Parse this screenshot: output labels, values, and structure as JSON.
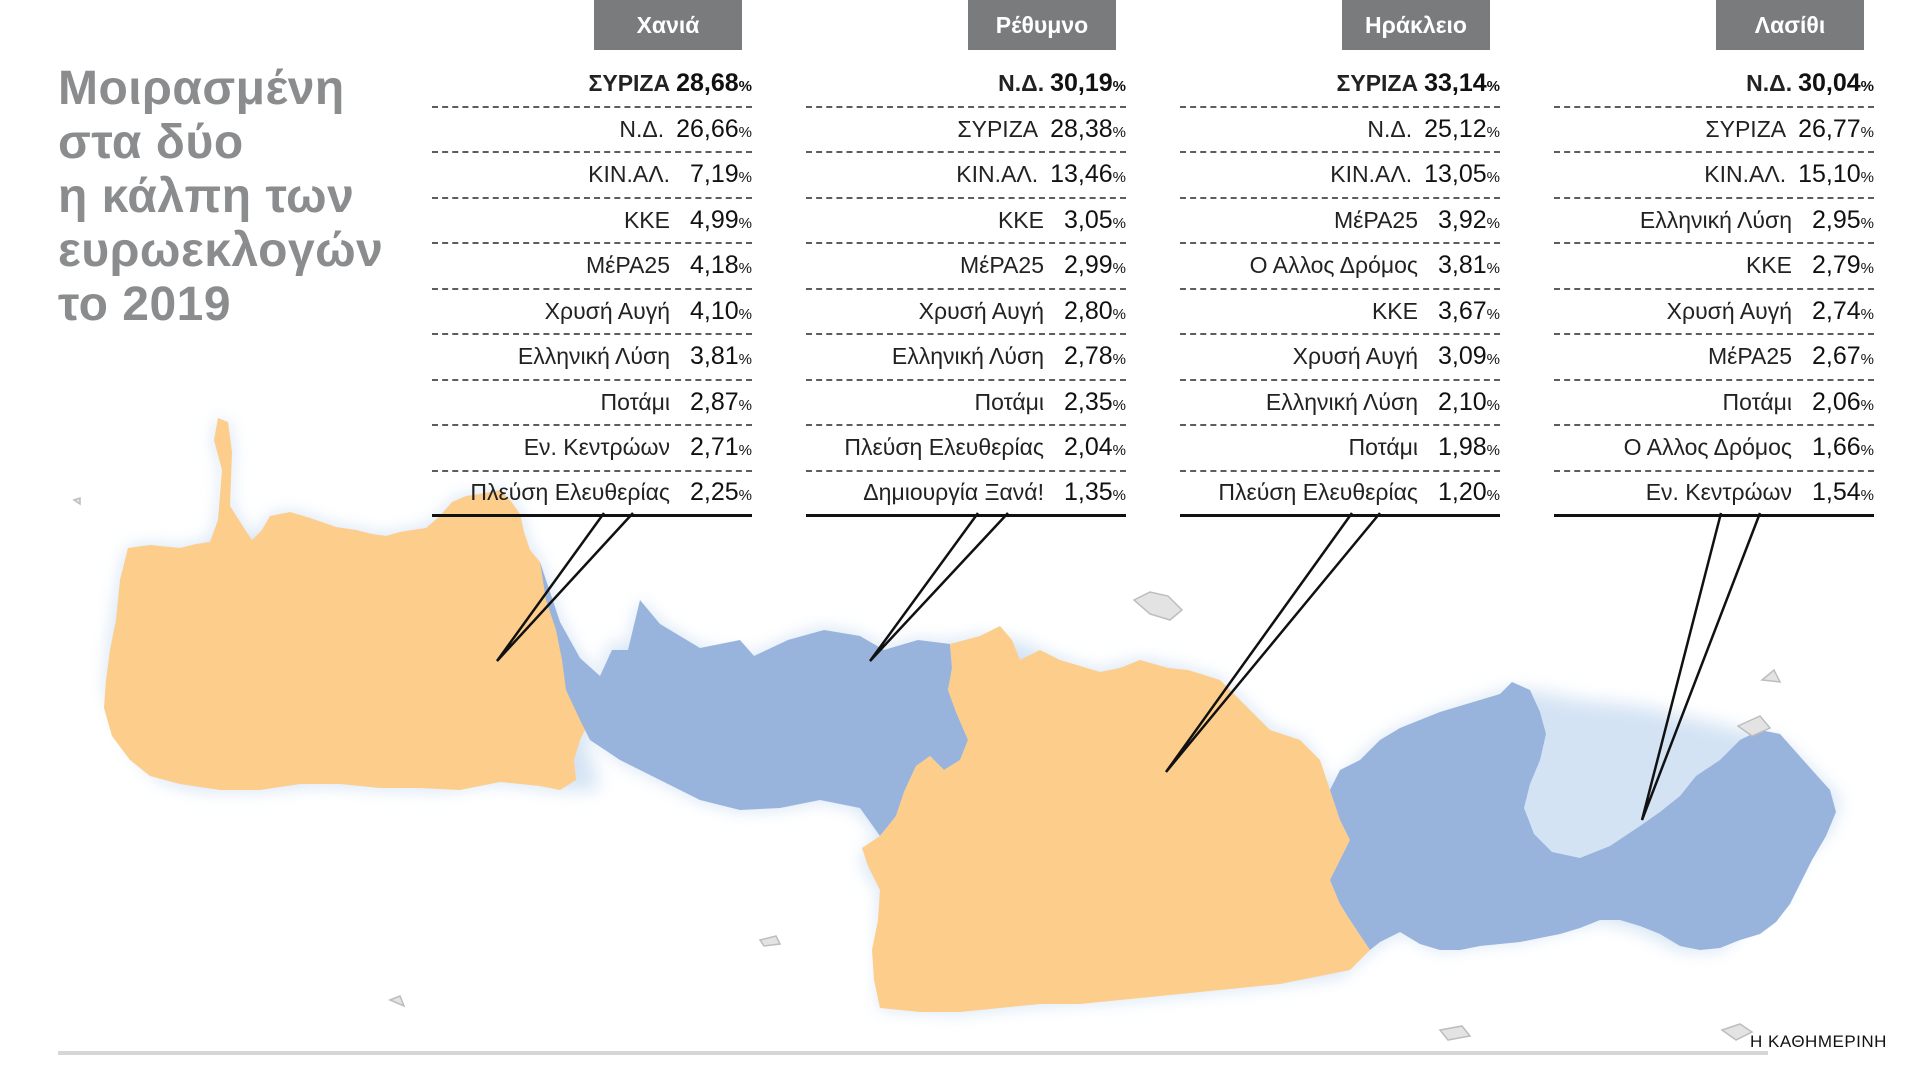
{
  "title_lines": [
    "Μοιρασμένη",
    "στα δύο",
    "η κάλπη των",
    "ευρωεκλογών",
    "το 2019"
  ],
  "brand": "Η ΚΑΘΗΜΕΡΙΝΗ",
  "percent_sign": "%",
  "colors": {
    "nd_blue": "#98b4dc",
    "syriza_orange": "#fdcd8c",
    "header_grey": "#7a7b7d",
    "title_grey": "#8a8c8e"
  },
  "regions": [
    {
      "name": "Χανιά",
      "winner": "ΣΥΡΙΖΑ",
      "results": [
        {
          "party": "ΣΥΡΙΖΑ",
          "value": "28,68"
        },
        {
          "party": "Ν.Δ.",
          "value": "26,66"
        },
        {
          "party": "ΚΙΝ.ΑΛ.",
          "value": "7,19"
        },
        {
          "party": "ΚΚΕ",
          "value": "4,99"
        },
        {
          "party": "ΜέΡΑ25",
          "value": "4,18"
        },
        {
          "party": "Χρυσή Αυγή",
          "value": "4,10"
        },
        {
          "party": "Ελληνική Λύση",
          "value": "3,81"
        },
        {
          "party": "Ποτάμι",
          "value": "2,87"
        },
        {
          "party": "Εν. Κεντρώων",
          "value": "2,71"
        },
        {
          "party": "Πλεύση Ελευθερίας",
          "value": "2,25"
        }
      ]
    },
    {
      "name": "Ρέθυμνο",
      "winner": "Ν.Δ.",
      "results": [
        {
          "party": "Ν.Δ.",
          "value": "30,19"
        },
        {
          "party": "ΣΥΡΙΖΑ",
          "value": "28,38"
        },
        {
          "party": "ΚΙΝ.ΑΛ.",
          "value": "13,46"
        },
        {
          "party": "ΚΚΕ",
          "value": "3,05"
        },
        {
          "party": "ΜέΡΑ25",
          "value": "2,99"
        },
        {
          "party": "Χρυσή Αυγή",
          "value": "2,80"
        },
        {
          "party": "Ελληνική Λύση",
          "value": "2,78"
        },
        {
          "party": "Ποτάμι",
          "value": "2,35"
        },
        {
          "party": "Πλεύση Ελευθερίας",
          "value": "2,04"
        },
        {
          "party": "Δημιουργία Ξανά!",
          "value": "1,35"
        }
      ]
    },
    {
      "name": "Ηράκλειο",
      "winner": "ΣΥΡΙΖΑ",
      "results": [
        {
          "party": "ΣΥΡΙΖΑ",
          "value": "33,14"
        },
        {
          "party": "Ν.Δ.",
          "value": "25,12"
        },
        {
          "party": "ΚΙΝ.ΑΛ.",
          "value": "13,05"
        },
        {
          "party": "ΜέΡΑ25",
          "value": "3,92"
        },
        {
          "party": "Ο Αλλος Δρόμος",
          "value": "3,81"
        },
        {
          "party": "ΚΚΕ",
          "value": "3,67"
        },
        {
          "party": "Χρυσή Αυγή",
          "value": "3,09"
        },
        {
          "party": "Ελληνική Λύση",
          "value": "2,10"
        },
        {
          "party": "Ποτάμι",
          "value": "1,98"
        },
        {
          "party": "Πλεύση Ελευθερίας",
          "value": "1,20"
        }
      ]
    },
    {
      "name": "Λασίθι",
      "winner": "Ν.Δ.",
      "results": [
        {
          "party": "Ν.Δ.",
          "value": "30,04"
        },
        {
          "party": "ΣΥΡΙΖΑ",
          "value": "26,77"
        },
        {
          "party": "ΚΙΝ.ΑΛ.",
          "value": "15,10"
        },
        {
          "party": "Ελληνική Λύση",
          "value": "2,95"
        },
        {
          "party": "ΚΚΕ",
          "value": "2,79"
        },
        {
          "party": "Χρυσή Αυγή",
          "value": "2,74"
        },
        {
          "party": "ΜέΡΑ25",
          "value": "2,67"
        },
        {
          "party": "Ποτάμι",
          "value": "2,06"
        },
        {
          "party": "Ο Αλλος Δρόμος",
          "value": "1,66"
        },
        {
          "party": "Εν. Κεντρώων",
          "value": "1,54"
        }
      ]
    }
  ]
}
